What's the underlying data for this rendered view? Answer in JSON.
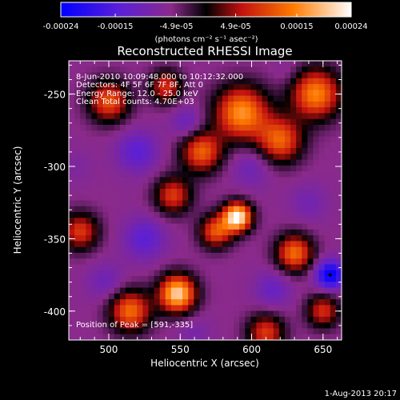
{
  "chart_data": {
    "type": "heatmap",
    "title": "Reconstructed RHESSI Image",
    "colorbar": {
      "ticks": [
        "-0.00024",
        "-0.00015",
        "-4.9e-05",
        "4.9e-05",
        "0.00015",
        "0.00024"
      ],
      "tick_values": [
        -0.00024,
        -0.00015,
        -4.9e-05,
        4.9e-05,
        0.00015,
        0.00024
      ],
      "range": [
        -0.00024,
        0.00024
      ],
      "colors": [
        "#0000ff",
        "#5a1fd8",
        "#8a2a8a",
        "#000000",
        "#c01010",
        "#ff7a00",
        "#ffffff"
      ],
      "unit_label": "(photons cm⁻² s⁻¹ asec⁻²)"
    },
    "xlabel": "Heliocentric X (arcsec)",
    "ylabel": "Heliocentric Y (arcsec)",
    "xlim": [
      472,
      663
    ],
    "ylim": [
      -420,
      -227
    ],
    "x_ticks": [
      500,
      550,
      600,
      650
    ],
    "y_ticks": [
      -250,
      -300,
      -350,
      -400
    ],
    "annotations": [
      "8-Jun-2010 10:09:48.000 to 10:12:32.000",
      "Detectors: 4F 5F 6F 7F 8F, Att 0",
      "Energy Range: 12.0 - 25.0 keV",
      "Clean    Total counts: 4.70E+03"
    ],
    "peak_label": "Position of Peak = [591,-335]",
    "peak": {
      "x": 591,
      "y": -335
    },
    "marker": {
      "x": 655,
      "y": -375
    },
    "blobs": [
      {
        "x": 590,
        "y": -335,
        "v": 0.00024,
        "s": 7
      },
      {
        "x": 593,
        "y": -263,
        "v": 0.00016,
        "s": 13
      },
      {
        "x": 645,
        "y": -250,
        "v": 0.00015,
        "s": 12
      },
      {
        "x": 620,
        "y": -282,
        "v": 0.00012,
        "s": 11
      },
      {
        "x": 565,
        "y": -290,
        "v": 0.00012,
        "s": 10
      },
      {
        "x": 548,
        "y": -388,
        "v": 0.00021,
        "s": 9
      },
      {
        "x": 500,
        "y": -255,
        "v": 0.00011,
        "s": 10
      },
      {
        "x": 545,
        "y": -320,
        "v": 9e-05,
        "s": 9
      },
      {
        "x": 630,
        "y": -360,
        "v": 0.00013,
        "s": 9
      },
      {
        "x": 515,
        "y": -400,
        "v": 0.00013,
        "s": 10
      },
      {
        "x": 480,
        "y": -345,
        "v": 9e-05,
        "s": 9
      },
      {
        "x": 575,
        "y": -345,
        "v": 0.00011,
        "s": 8
      },
      {
        "x": 610,
        "y": -415,
        "v": 9e-05,
        "s": 9
      },
      {
        "x": 650,
        "y": -400,
        "v": 8e-05,
        "s": 8
      },
      {
        "x": 540,
        "y": -245,
        "v": 8e-05,
        "s": 8
      },
      {
        "x": 655,
        "y": -375,
        "v": -0.00024,
        "s": 7
      },
      {
        "x": 520,
        "y": -290,
        "v": -0.00014,
        "s": 10
      },
      {
        "x": 600,
        "y": -300,
        "v": -0.00011,
        "s": 10
      },
      {
        "x": 525,
        "y": -350,
        "v": -0.00014,
        "s": 10
      },
      {
        "x": 555,
        "y": -270,
        "v": -0.00012,
        "s": 8
      },
      {
        "x": 498,
        "y": -380,
        "v": -0.00011,
        "s": 9
      },
      {
        "x": 615,
        "y": -385,
        "v": -0.00012,
        "s": 9
      },
      {
        "x": 640,
        "y": -325,
        "v": -0.0001,
        "s": 9
      },
      {
        "x": 560,
        "y": -415,
        "v": -9e-05,
        "s": 8
      },
      {
        "x": 478,
        "y": -300,
        "v": -8e-05,
        "s": 8
      },
      {
        "x": 625,
        "y": -235,
        "v": -8e-05,
        "s": 7
      }
    ]
  },
  "footer": {
    "timestamp": "1-Aug-2013 20:17"
  }
}
